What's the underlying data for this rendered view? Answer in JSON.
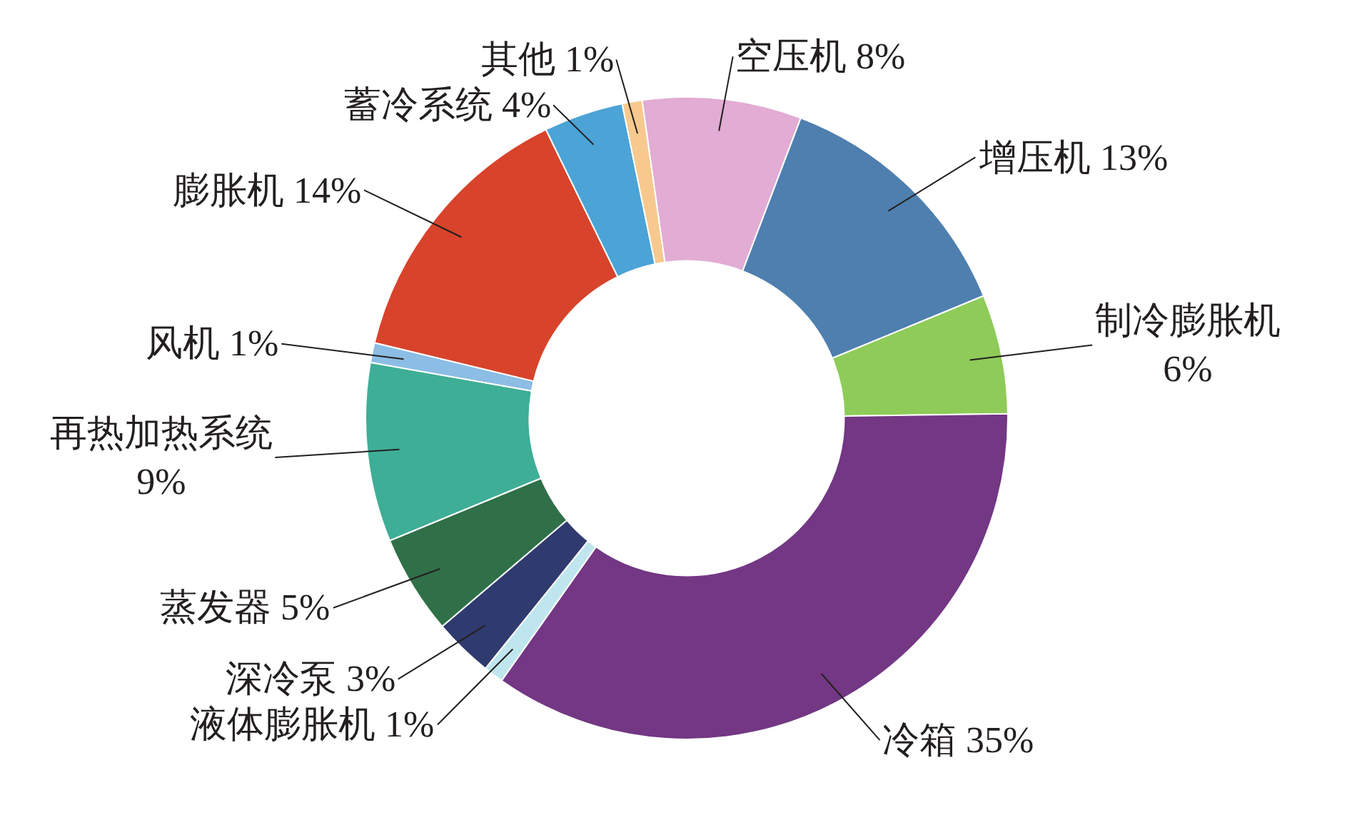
{
  "chart_data": {
    "type": "donut",
    "categories": [
      "空压机",
      "增压机",
      "制冷膨胀机",
      "冷箱",
      "液体膨胀机",
      "深冷泵",
      "蒸发器",
      "再热加热系统",
      "风机",
      "膨胀机",
      "蓄冷系统",
      "其他"
    ],
    "values": [
      8,
      13,
      6,
      35,
      1,
      3,
      5,
      9,
      1,
      14,
      4,
      1
    ],
    "colors": [
      "#e2acd4",
      "#4e7fae",
      "#8ecb58",
      "#733784",
      "#bfe6ee",
      "#2f3a6e",
      "#2f7048",
      "#3fae96",
      "#8cbde4",
      "#d8432b",
      "#4ba3d6",
      "#f7c98e"
    ],
    "value_labels": [
      "8%",
      "13%",
      "6%",
      "35%",
      "1%",
      "3%",
      "5%",
      "9%",
      "1%",
      "14%",
      "4%",
      "1%"
    ]
  }
}
